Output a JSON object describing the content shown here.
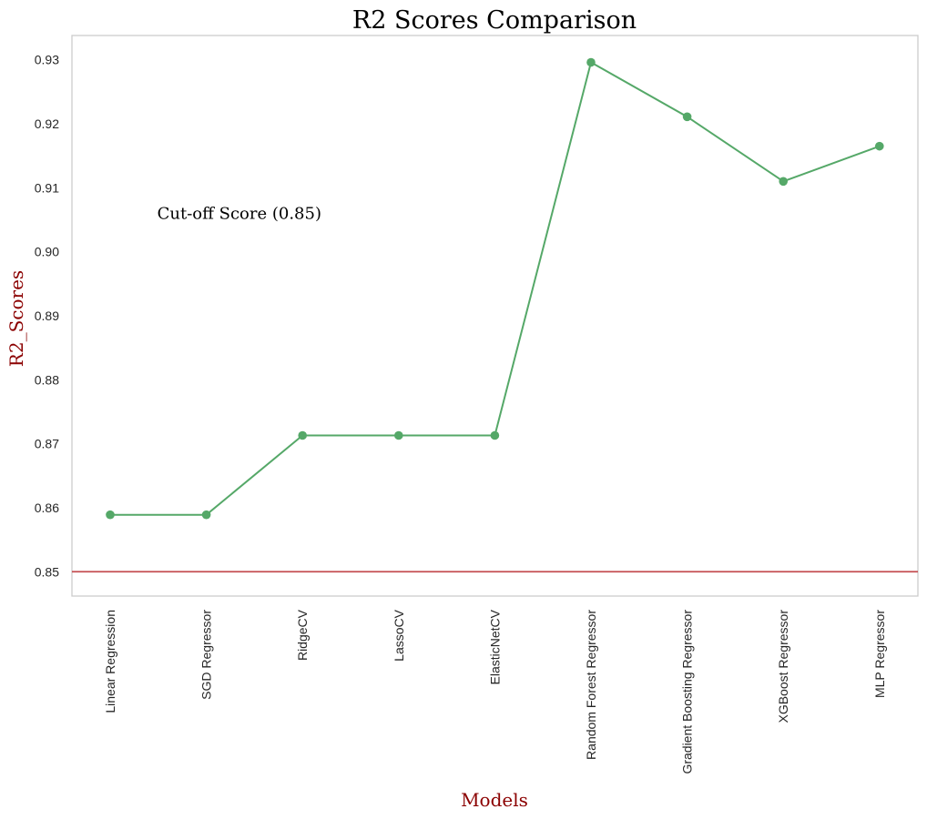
{
  "chart_data": {
    "type": "line",
    "title": "R2 Scores Comparison",
    "xlabel": "Models",
    "ylabel": "R2_Scores",
    "categories": [
      "Linear Regression",
      "SGD Regressor",
      "RidgeCV",
      "LassoCV",
      "ElasticNetCV",
      "Random Forest Regressor",
      "Gradient Boosting Regressor",
      "XGBoost Regressor",
      "MLP Regressor"
    ],
    "series": [
      {
        "values": [
          0.8589,
          0.8589,
          0.8713,
          0.8713,
          0.8713,
          0.9296,
          0.9211,
          0.911,
          0.9165
        ],
        "color": "#55a868",
        "marker": "circle"
      }
    ],
    "yticks": [
      "0.85",
      "0.86",
      "0.87",
      "0.88",
      "0.89",
      "0.90",
      "0.91",
      "0.92",
      "0.93"
    ],
    "ylim": [
      0.8462,
      0.9338
    ],
    "grid": false,
    "reference_line": {
      "value": 0.85,
      "color": "#c44e52",
      "label": "Cut-off Score (0.85)"
    },
    "annotation": {
      "text": "Cut-off Score (0.85)",
      "x": 1,
      "y": 0.906
    },
    "label_color": "#8b0000",
    "frame_color": "#cccccc"
  }
}
